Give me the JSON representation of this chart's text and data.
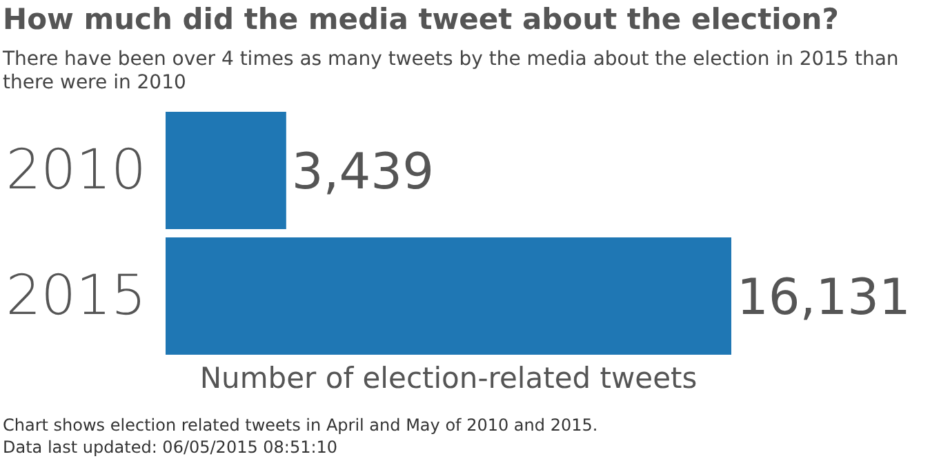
{
  "chart_data": {
    "type": "bar",
    "orientation": "horizontal",
    "title": "How much did the media tweet about the election?",
    "subtitle": "There have been over 4 times as many tweets by the media about the election in 2015 than there were in 2010",
    "xlabel": "Number of election-related tweets",
    "categories": [
      "2010",
      "2015"
    ],
    "values": [
      3439,
      16131
    ],
    "color": "#1f77b4",
    "value_labels": [
      "3,439",
      "16,131"
    ],
    "grid": false,
    "legend": false,
    "annotations": [
      "Chart shows election related tweets in April and May of 2010 and 2015.",
      "Data last updated: 06/05/2015 08:51:10"
    ]
  }
}
